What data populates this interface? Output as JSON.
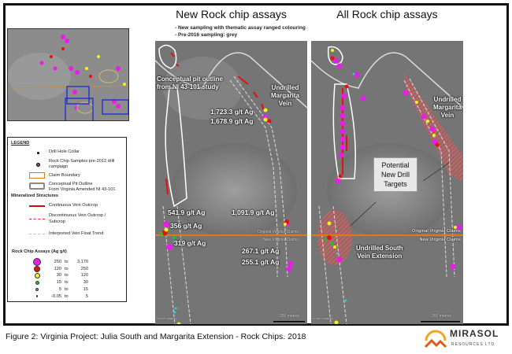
{
  "figure": {
    "caption": "Figure 2: Virginia Project: Julia South and Margarita Extension - Rock Chips. 2018",
    "logo": {
      "name": "MIRASOL",
      "sub": "RESOURCES LTD",
      "color": "#f0a81c"
    }
  },
  "panels": {
    "new": {
      "title": "New Rock chip assays",
      "notes": [
        "- New sampling with thematic assay ranged colouring",
        "- Pre-2016 sampling: grey"
      ],
      "labels": {
        "pit": "Conceptual pit outline",
        "pit2": "from NI 43-101 study",
        "vein1": "Undrilled",
        "vein2": "Margarita",
        "vein3": "Vein",
        "a1": "1,723.3 g/t Ag",
        "a2": "1,678.9 g/t Ag",
        "a3": "541.9 g/t Ag",
        "a4": "356 g/t Ag",
        "a5": "1,091.9 g/t Ag",
        "a6": "319 g/t Ag",
        "a7": "267.1 g/t Ag",
        "a8": "255.1 g/t Ag",
        "orig": "Original Virginia Claims",
        "newc": "New Virginia Claims",
        "scale": "250 metres",
        "credit": "World Imagery"
      }
    },
    "all": {
      "title": "All Rock chip assays",
      "labels": {
        "vein1": "Undrilled",
        "vein2": "Margarita",
        "vein3": "Vein",
        "target1": "Potential",
        "target2": "New Drill",
        "target3": "Targets",
        "south1": "Undrilled South",
        "south2": "Vein Extension",
        "orig": "Original Virginia Claims",
        "newc": "New Virginia Claims",
        "scale": "250 metres",
        "credit": "World Imagery"
      }
    }
  },
  "legend": {
    "title": "LEGEND",
    "items": [
      "Drill Hole Collar",
      "Rock Chip Samples pre-2012 drill",
      "campaign",
      "Claim Boundary",
      "Conceptual Pit Outline",
      "From Virginia Amended NI 43-101"
    ],
    "structures_title": "Mineralized Structures",
    "structures": [
      "Continuous Vein Outcrop",
      "Discontinuous Vein Outcrop /",
      "Subcrop",
      "Interpreted Vein Float Trend"
    ],
    "assay_title": "Rock Chip Assays (Ag g/t)",
    "assays": [
      {
        "from": "250",
        "to": "3,170",
        "color": "#e81ee8"
      },
      {
        "from": "120",
        "to": "250",
        "color": "#e51010"
      },
      {
        "from": "30",
        "to": "120",
        "color": "#f4f020"
      },
      {
        "from": "15",
        "to": "30",
        "color": "#22c02a"
      },
      {
        "from": "5",
        "to": "15",
        "color": "#30c8d0"
      },
      {
        "from": "-0.05",
        "to": "5",
        "color": "#222222"
      }
    ],
    "to_word": "to"
  }
}
